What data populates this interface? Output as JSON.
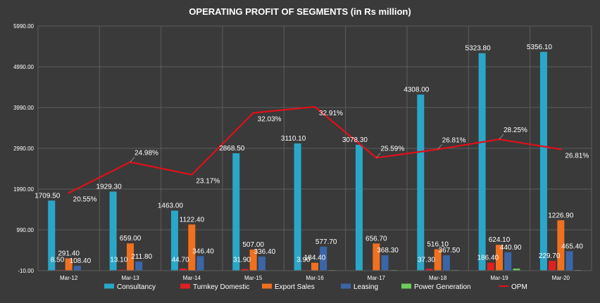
{
  "chart_data": {
    "type": "bar",
    "title": "OPERATING PROFIT OF SEGMENTS (in Rs million)",
    "categories": [
      "Mar-12",
      "Mar-13",
      "Mar-14",
      "Mar-15",
      "Mar-16",
      "Mar-17",
      "Mar-18",
      "Mar-19",
      "Mar-20"
    ],
    "ylim": [
      -10,
      5990
    ],
    "yticks": [
      -10,
      990,
      1990,
      2990,
      3990,
      4990,
      5990
    ],
    "ytick_labels": [
      "-10.00",
      "990.00",
      "1990.00",
      "2990.00",
      "3990.00",
      "4990.00",
      "5990.00"
    ],
    "grid": true,
    "legend_position": "bottom",
    "series": [
      {
        "name": "Consultancy",
        "color": "#2aa7c8",
        "values": [
          1709.5,
          1929.3,
          1463.0,
          2868.5,
          3110.1,
          3078.3,
          4308.0,
          5323.8,
          5356.1
        ],
        "labels": [
          "1709.50",
          "1929.30",
          "1463.00",
          "2868.50",
          "3110.10",
          "3078.30",
          "4308.00",
          "5323.80",
          "5356.10"
        ]
      },
      {
        "name": "Turnkey Domestic",
        "color": "#e02020",
        "values": [
          8.5,
          13.1,
          44.7,
          31.9,
          3.9,
          0,
          37.3,
          186.4,
          229.7
        ],
        "labels": [
          "8.50",
          "13.10",
          "44.70",
          "31.90",
          "3.90",
          "",
          "37.30",
          "186.40",
          "229.70"
        ]
      },
      {
        "name": "Export Sales",
        "color": "#f07020",
        "values": [
          291.4,
          659.0,
          1122.4,
          507.0,
          184.4,
          656.7,
          516.1,
          624.1,
          1226.9
        ],
        "labels": [
          "291.40",
          "659.00",
          "1122.40",
          "507.00",
          "184.40",
          "656.70",
          "516.10",
          "624.10",
          "1226.90"
        ]
      },
      {
        "name": "Leasing",
        "color": "#3a66a8",
        "values": [
          108.4,
          211.8,
          346.4,
          336.4,
          577.7,
          368.3,
          367.5,
          440.9,
          465.4
        ],
        "labels": [
          "108.40",
          "211.80",
          "346.40",
          "336.40",
          "577.70",
          "368.30",
          "367.50",
          "440.90",
          "465.40"
        ]
      },
      {
        "name": "Power Generation",
        "color": "#6ccc5a",
        "values": [
          0,
          0,
          0,
          0,
          5,
          5,
          5,
          40,
          5
        ],
        "labels": [
          "",
          "",
          "",
          "",
          "",
          "",
          "",
          "",
          ""
        ]
      }
    ],
    "line_series": {
      "name": "OPM",
      "color": "#e0101a",
      "values_pct": [
        20.55,
        24.98,
        23.17,
        32.03,
        32.91,
        25.59,
        26.81,
        28.25,
        26.81
      ],
      "labels": [
        "20.55%",
        "24.98%",
        "23.17%",
        "32.03%",
        "32.91%",
        "25.59%",
        "26.81%",
        "28.25%",
        "26.81%"
      ]
    },
    "legend": [
      "Consultancy",
      "Turnkey Domestic",
      "Export Sales",
      "Leasing",
      "Power Generation",
      "OPM"
    ]
  }
}
